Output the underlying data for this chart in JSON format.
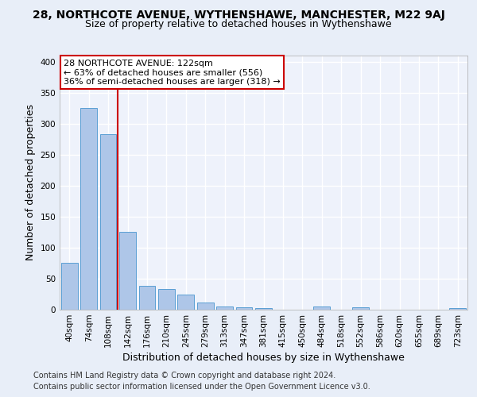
{
  "title1": "28, NORTHCOTE AVENUE, WYTHENSHAWE, MANCHESTER, M22 9AJ",
  "title2": "Size of property relative to detached houses in Wythenshawe",
  "xlabel": "Distribution of detached houses by size in Wythenshawe",
  "ylabel": "Number of detached properties",
  "footnote1": "Contains HM Land Registry data © Crown copyright and database right 2024.",
  "footnote2": "Contains public sector information licensed under the Open Government Licence v3.0.",
  "categories": [
    "40sqm",
    "74sqm",
    "108sqm",
    "142sqm",
    "176sqm",
    "210sqm",
    "245sqm",
    "279sqm",
    "313sqm",
    "347sqm",
    "381sqm",
    "415sqm",
    "450sqm",
    "484sqm",
    "518sqm",
    "552sqm",
    "586sqm",
    "620sqm",
    "655sqm",
    "689sqm",
    "723sqm"
  ],
  "values": [
    75,
    325,
    283,
    125,
    39,
    33,
    24,
    12,
    5,
    4,
    3,
    0,
    0,
    5,
    0,
    4,
    0,
    0,
    0,
    0,
    3
  ],
  "bar_color": "#aec6e8",
  "bar_edge_color": "#5a9fd4",
  "vline_color": "#cc0000",
  "annotation_line1": "28 NORTHCOTE AVENUE: 122sqm",
  "annotation_line2": "← 63% of detached houses are smaller (556)",
  "annotation_line3": "36% of semi-detached houses are larger (318) →",
  "annotation_box_color": "white",
  "annotation_box_edge_color": "#cc0000",
  "ylim": [
    0,
    410
  ],
  "yticks": [
    0,
    50,
    100,
    150,
    200,
    250,
    300,
    350,
    400
  ],
  "bg_color": "#e8eef8",
  "plot_bg_color": "#eef2fb",
  "title1_fontsize": 10,
  "title2_fontsize": 9,
  "xlabel_fontsize": 9,
  "ylabel_fontsize": 9,
  "tick_fontsize": 7.5,
  "annot_fontsize": 8,
  "footnote_fontsize": 7
}
